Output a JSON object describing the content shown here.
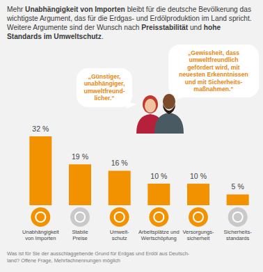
{
  "chart_data": {
    "type": "bar",
    "title": [
      "Mehr ",
      "Unabhängigkeit von Importen",
      " bleibt für die deutsche Bevölkerung das wichtigste Argument, das für die Erdgas- und Erdölproduktion im Land spricht. Weitere Argumente sind der Wunsch nach ",
      "Preisstabilität",
      " und ",
      "hohe Standards im Umweltschutz",
      "."
    ],
    "annotations": [
      "„Günstiger,\nunabhängiger,\numweltfreund-\nlicher.“",
      "„Gewissheit, dass\numweltfreundlich\ngefördert wird, mit\nneuesten Erkenntnissen\nund mit Sicherheits-\nmaßnahmen.“"
    ],
    "footnote": "Was ist für Sie der ausschlaggebende Grund für Erdgas und Erdöl aus Deutsch-\nland? Offene Frage, Mehrfachnennungen möglich",
    "categories": [
      "Unabhängigkeit\nvon Importen",
      "Stabile\nPreise",
      "Umwelt-\nschutz",
      "Arbeitsplätze und\nWertschöpfung",
      "Versorgungs-\nsicherheit",
      "Sicherheits-\nstandards"
    ],
    "values": [
      32,
      19,
      16,
      10,
      10,
      5
    ],
    "value_labels": [
      "32 %",
      "19 %",
      "16 %",
      "10 %",
      "10 %",
      "5 %"
    ],
    "color": "#f39200",
    "data_labels": true,
    "tick_labels": "x",
    "grid": false
  }
}
